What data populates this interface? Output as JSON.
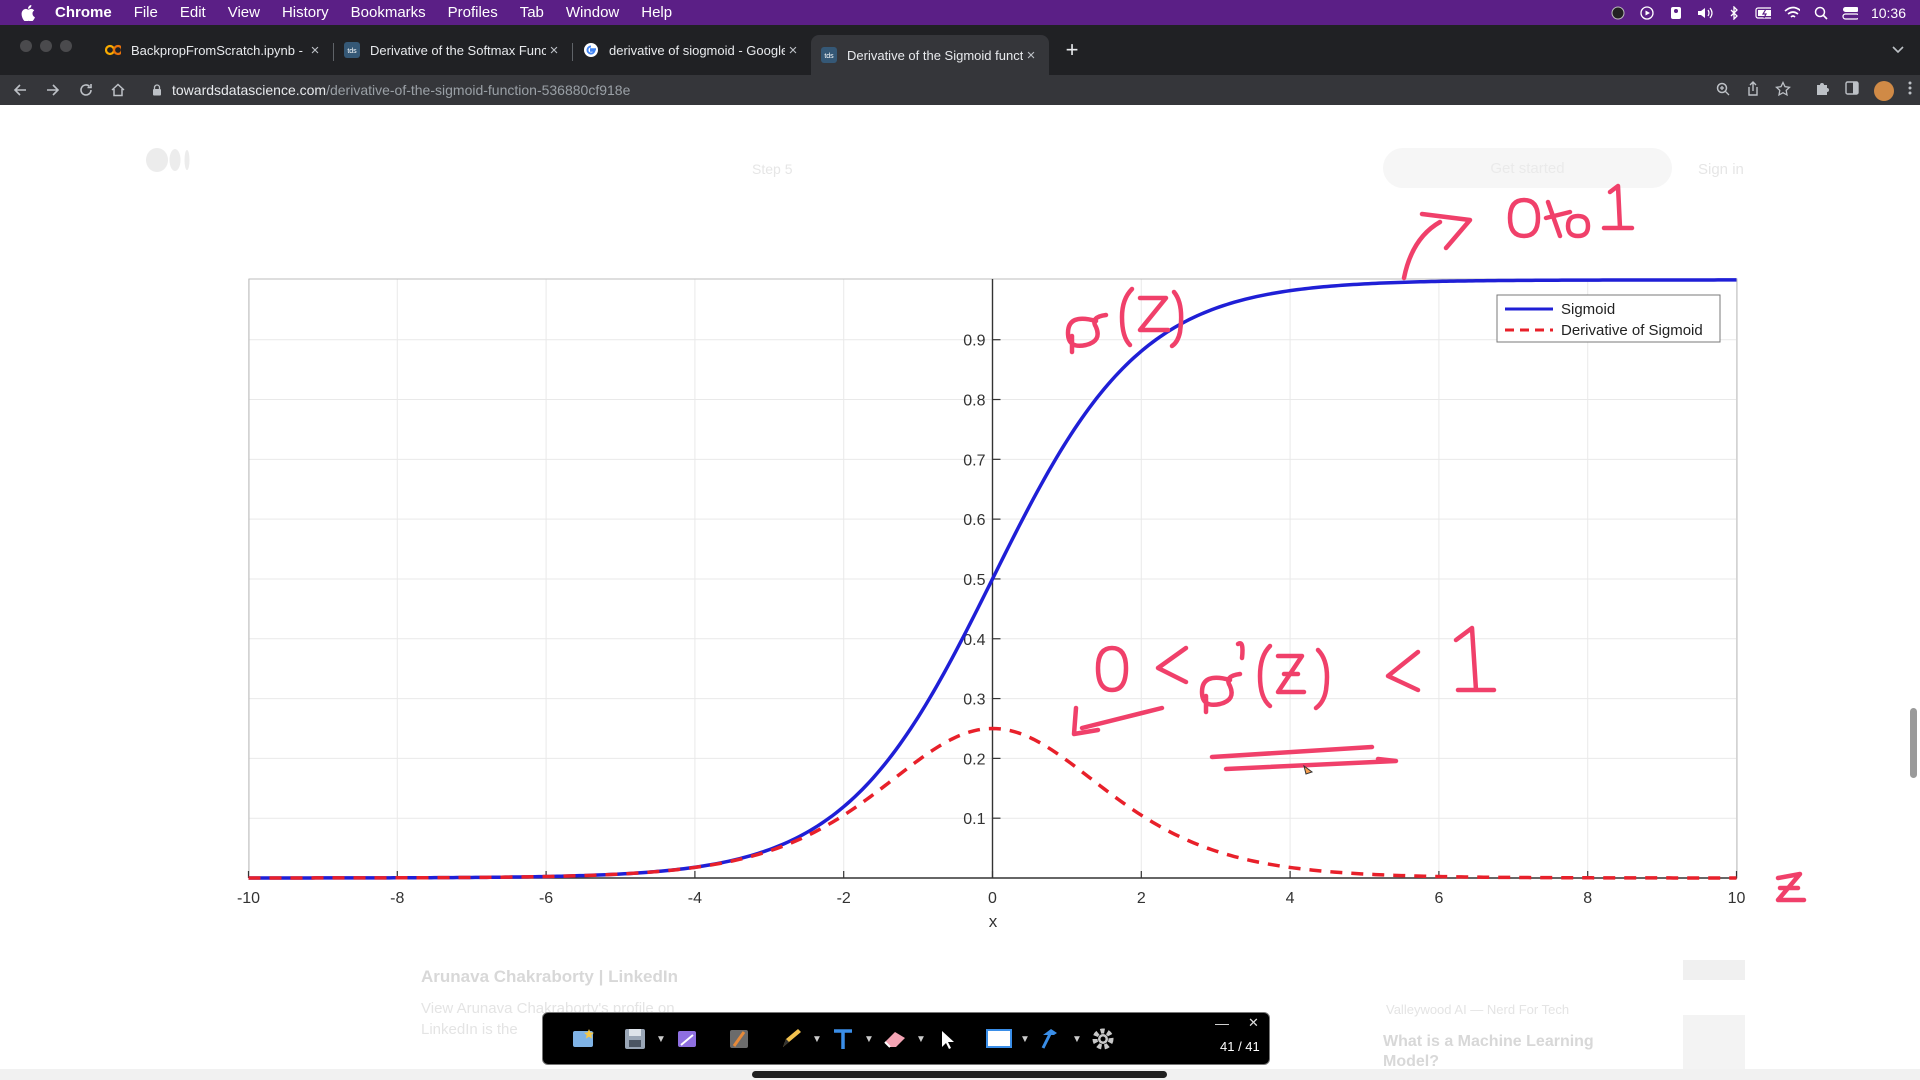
{
  "menubar": {
    "app": "Chrome",
    "items": [
      "File",
      "Edit",
      "View",
      "History",
      "Bookmarks",
      "Profiles",
      "Tab",
      "Window",
      "Help"
    ],
    "clock": "10:36"
  },
  "tabs": [
    {
      "title": "BackpropFromScratch.ipynb -",
      "favicon": "colab-icon"
    },
    {
      "title": "Derivative of the Softmax Func",
      "favicon": "tds-icon"
    },
    {
      "title": "derivative of siogmoid - Google",
      "favicon": "google-icon"
    },
    {
      "title": "Derivative of the Sigmoid funct",
      "favicon": "tds-icon"
    }
  ],
  "address": {
    "domain": "towardsdatascience.com",
    "path": "/derivative-of-the-sigmoid-function-536880cf918e"
  },
  "page": {
    "get_started": "Get started",
    "sign_in": "Sign in",
    "step": "Step 5",
    "rec1_title": "Arunava Chakraborty | LinkedIn",
    "rec1_text_1": "View Arunava Chakraborty's profile on",
    "rec1_text_2": "LinkedIn is the",
    "rec2_byline": "Valleywood AI — Nerd For Tech",
    "rec2_title_1": "What is a Machine Learning",
    "rec2_title_2": "Model?"
  },
  "chart_data": {
    "type": "line",
    "xlabel": "x",
    "ylabel": "",
    "xlim": [
      -10,
      10
    ],
    "ylim": [
      0,
      1
    ],
    "xticks": [
      -10,
      -8,
      -6,
      -4,
      -2,
      0,
      2,
      4,
      6,
      8,
      10
    ],
    "yticks": [
      0.1,
      0.2,
      0.3,
      0.4,
      0.5,
      0.6,
      0.7,
      0.8,
      0.9
    ],
    "grid": true,
    "legend_position": "top-right",
    "x": [
      -10,
      -8,
      -6,
      -5,
      -4,
      -3,
      -2.5,
      -2,
      -1.5,
      -1,
      -0.5,
      0,
      0.5,
      1,
      1.5,
      2,
      2.5,
      3,
      4,
      5,
      6,
      8,
      10
    ],
    "series": [
      {
        "name": "Sigmoid",
        "color": "#1f1fd6",
        "style": "solid",
        "values": [
          0.0,
          0.0003,
          0.0025,
          0.0067,
          0.018,
          0.0474,
          0.0759,
          0.1192,
          0.1824,
          0.2689,
          0.3775,
          0.5,
          0.6225,
          0.7311,
          0.8176,
          0.8808,
          0.9241,
          0.9526,
          0.982,
          0.9933,
          0.9975,
          0.9997,
          1.0
        ]
      },
      {
        "name": "Derivative of Sigmoid",
        "color": "#e8202a",
        "style": "dashed",
        "values": [
          0.0,
          0.0003,
          0.0025,
          0.0066,
          0.0177,
          0.0452,
          0.0701,
          0.105,
          0.1491,
          0.1966,
          0.235,
          0.25,
          0.235,
          0.1966,
          0.1491,
          0.105,
          0.0701,
          0.0452,
          0.0177,
          0.0066,
          0.0025,
          0.0003,
          0.0
        ]
      }
    ]
  },
  "annotation_toolbar": {
    "counter": "41 / 41"
  },
  "colors": {
    "menubar": "#5b1f86",
    "tabbar": "#202124",
    "toolbar": "#35363a",
    "ink": "#f0406a"
  }
}
